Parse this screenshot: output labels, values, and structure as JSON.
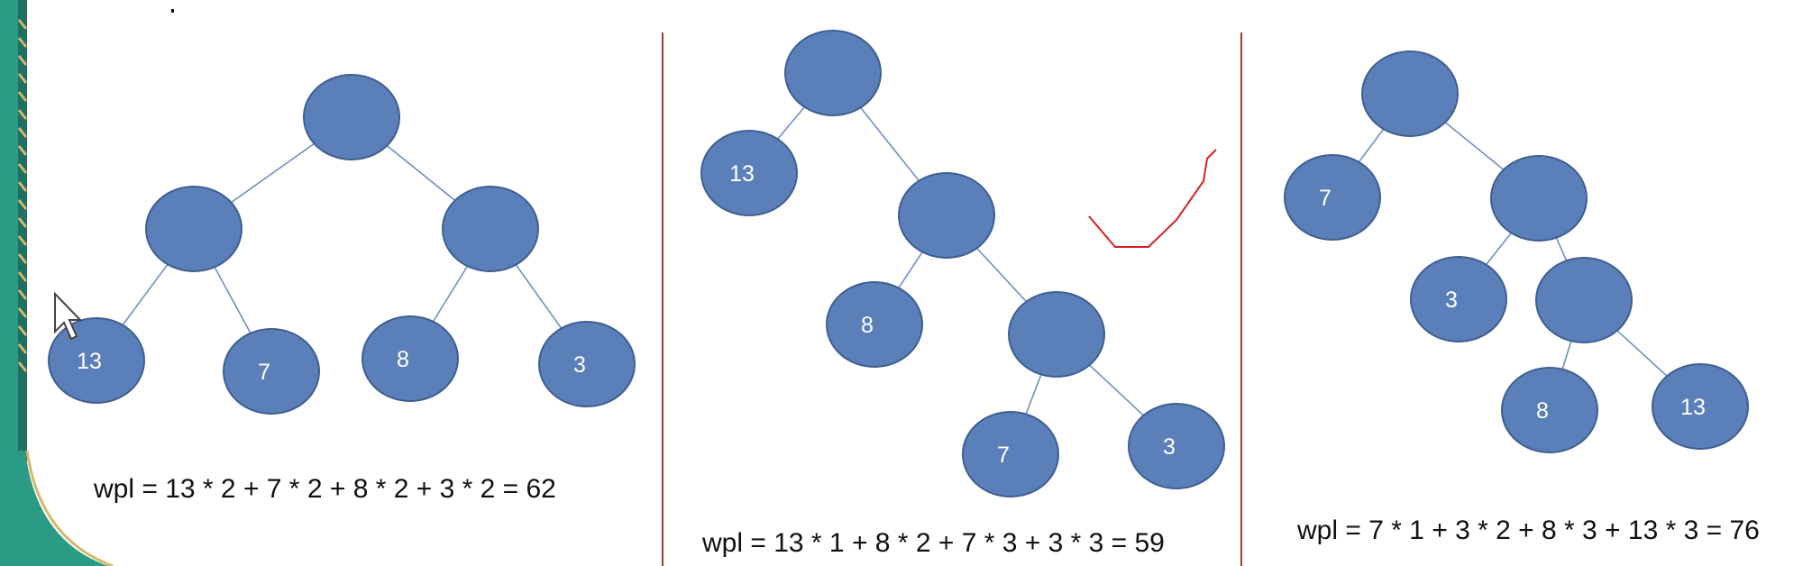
{
  "colors": {
    "background": "#ffffff",
    "node_fill": "#5b7fb8",
    "node_stroke": "#3f5f91",
    "edge": "#6f8fc2",
    "node_text": "#ffffff",
    "formula_text": "#111111",
    "divider": "#a33a3a",
    "annotation": "#d62020",
    "left_strip_green": "#2c9b86",
    "left_strip_dark": "#1f6f63",
    "left_strip_gold": "#d6b86a",
    "cursor_fill": "#ffffff",
    "cursor_stroke": "#444444"
  },
  "trees": [
    {
      "id": "tree-1",
      "labels": {
        "t1n4": "13",
        "t1n5": "7",
        "t1n6": "8",
        "t1n7": "3"
      },
      "formula": "wpl = 13 * 2 + 7 * 2 + 8 * 2 + 3 * 2 = 62"
    },
    {
      "id": "tree-2",
      "labels": {
        "t2n2": "13",
        "t2n4": "8",
        "t2n6": "7",
        "t2n7": "3"
      },
      "formula": "wpl = 13 * 1 + 8 * 2 + 7 * 3 + 3 * 3 = 59"
    },
    {
      "id": "tree-3",
      "labels": {
        "t3n2": "7",
        "t3n4": "3",
        "t3n6": "8",
        "t3n7": "13"
      },
      "formula": "wpl = 7 * 1 + 3 * 2 + 8 * 3 + 13 * 3 = 76"
    }
  ]
}
